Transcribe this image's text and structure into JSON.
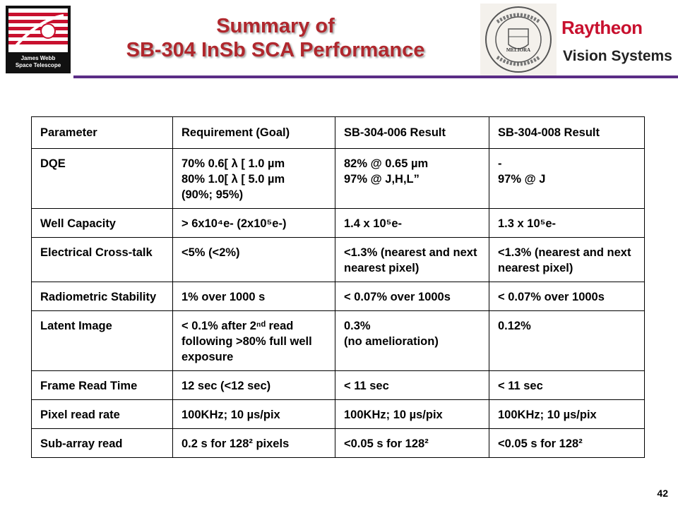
{
  "logos": {
    "jwst_text_line1": "James Webb",
    "jwst_text_line2": "Space Telescope",
    "company_name": "Raytheon",
    "company_division": "Vision Systems",
    "seal_motto": "MELIORA"
  },
  "title": {
    "line1": "Summary of",
    "line2": "SB-304 InSb SCA Performance"
  },
  "table": {
    "headers": [
      "Parameter",
      "Requirement (Goal)",
      "SB-304-006 Result",
      "SB-304-008 Result"
    ],
    "rows": [
      {
        "parameter": "DQE",
        "requirement": [
          "70% 0.6[ λ [ 1.0 µm",
          "80% 1.0[ λ [ 5.0 µm",
          "(90%; 95%)"
        ],
        "r006": [
          "82% @ 0.65 µm",
          "97% @ J,H,L”"
        ],
        "r008": [
          "-",
          "97% @ J"
        ]
      },
      {
        "parameter": "Well Capacity",
        "requirement": "> 6x10⁴e- (2x10⁵e-)",
        "r006": "1.4 x 10⁵e-",
        "r008": "1.3 x 10⁵e-"
      },
      {
        "parameter": "Electrical Cross-talk",
        "requirement": "<5% (<2%)",
        "r006": "<1.3% (nearest and next nearest pixel)",
        "r008": "<1.3% (nearest and next nearest pixel)"
      },
      {
        "parameter": "Radiometric Stability",
        "requirement": "1% over 1000 s",
        "r006": "< 0.07% over 1000s",
        "r008": "< 0.07% over 1000s"
      },
      {
        "parameter": "Latent Image",
        "requirement": "< 0.1% after 2ⁿᵈ read following >80% full well exposure",
        "r006": [
          "0.3%",
          "(no amelioration)"
        ],
        "r008": "0.12%"
      },
      {
        "parameter": "Frame Read Time",
        "requirement": "12 sec (<12 sec)",
        "r006": "< 11 sec",
        "r008": "< 11 sec"
      },
      {
        "parameter": "Pixel read rate",
        "requirement": "100KHz; 10 µs/pix",
        "r006": "100KHz; 10 µs/pix",
        "r008": "100KHz; 10 µs/pix"
      },
      {
        "parameter": "Sub-array read",
        "requirement": "0.2 s for 128² pixels",
        "r006": "<0.05 s for 128²",
        "r008": "<0.05 s for 128²"
      }
    ]
  },
  "page_number": "42",
  "colors": {
    "title": "#b0272d",
    "accent_bar": "#5b2d86",
    "raytheon": "#c8102e"
  }
}
